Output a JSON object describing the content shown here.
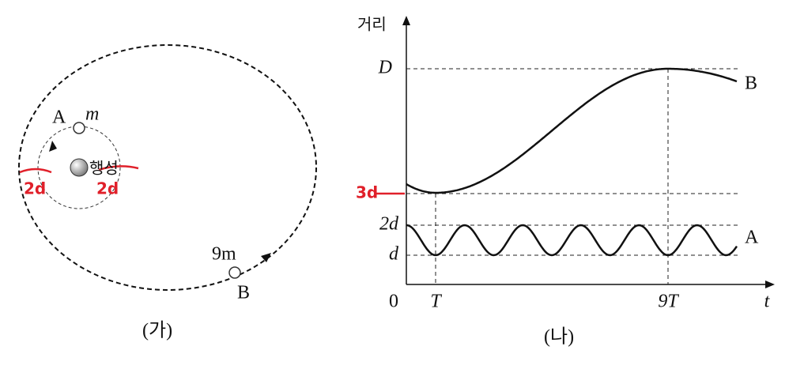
{
  "figure_a": {
    "label": "(가)",
    "satellite_a": {
      "name": "A",
      "mass": "m"
    },
    "planet": "행성",
    "satellite_b": {
      "name": "B",
      "mass": "9m"
    }
  },
  "figure_b": {
    "label": "(나)",
    "y_axis": "거리",
    "x_axis": "t",
    "origin": "0",
    "y_labels": [
      "D",
      "2d",
      "d"
    ],
    "x_labels": [
      "T",
      "9T"
    ],
    "curve_labels": [
      "B",
      "A"
    ]
  },
  "annotations": [
    "3d",
    "2d",
    "2d"
  ]
}
